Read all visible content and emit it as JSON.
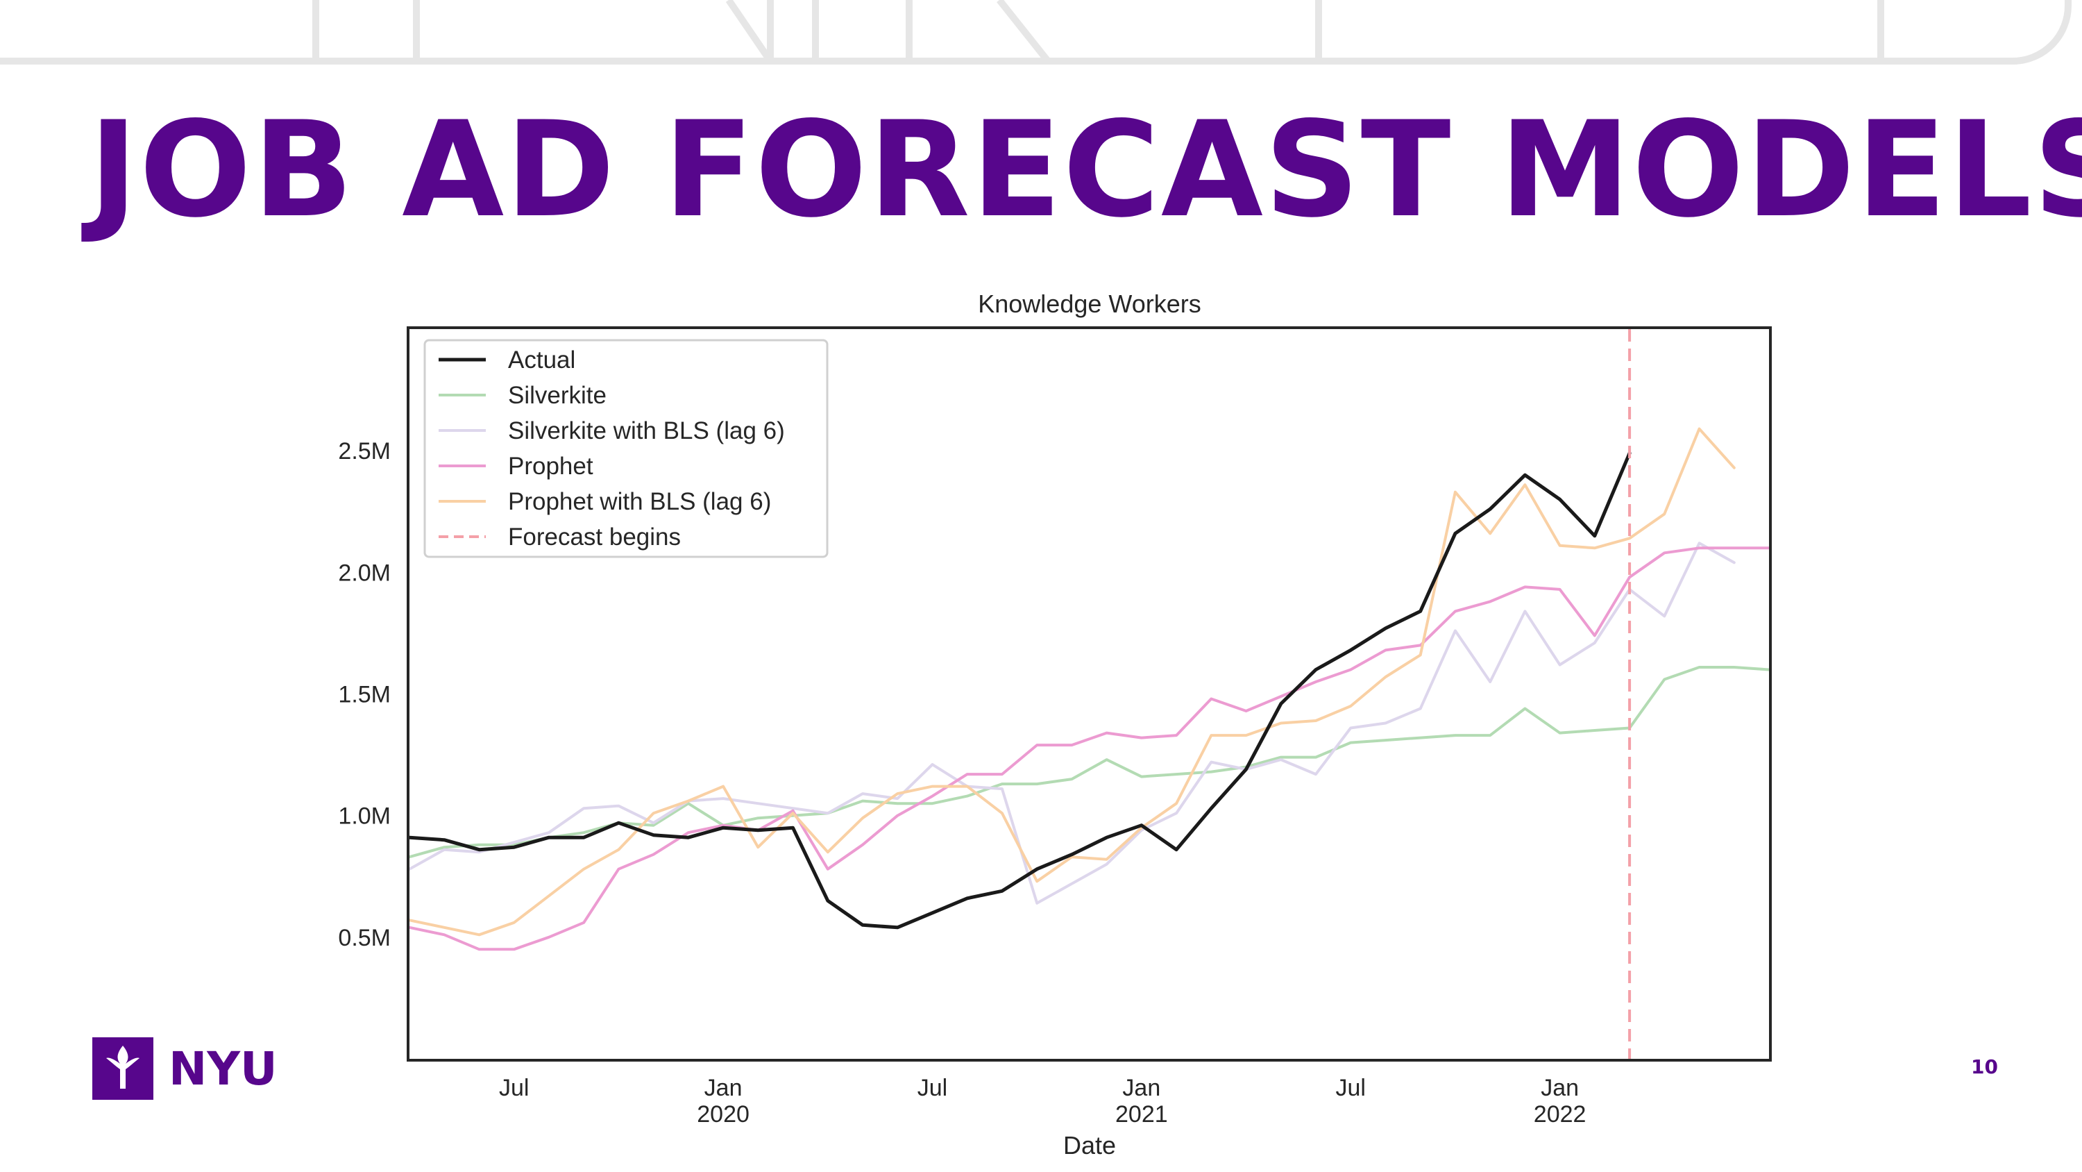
{
  "slide": {
    "title": "JOB AD FORECAST MODELS",
    "page_number": "10",
    "logo_text": "NYU",
    "accent_color": "#57068c"
  },
  "chart_data": {
    "type": "line",
    "title": "Knowledge Workers",
    "xlabel": "Date",
    "ylabel": "",
    "x": [
      "2019-04",
      "2019-05",
      "2019-06",
      "2019-07",
      "2019-08",
      "2019-09",
      "2019-10",
      "2019-11",
      "2019-12",
      "2020-01",
      "2020-02",
      "2020-03",
      "2020-04",
      "2020-05",
      "2020-06",
      "2020-07",
      "2020-08",
      "2020-09",
      "2020-10",
      "2020-11",
      "2020-12",
      "2021-01",
      "2021-02",
      "2021-03",
      "2021-04",
      "2021-05",
      "2021-06",
      "2021-07",
      "2021-08",
      "2021-09",
      "2021-10",
      "2021-11",
      "2021-12",
      "2022-01",
      "2022-02",
      "2022-03",
      "2022-04",
      "2022-05",
      "2022-06",
      "2022-07"
    ],
    "xlim": [
      "2019-04",
      "2022-07"
    ],
    "ylim": [
      0,
      3000000
    ],
    "yticks": [
      500000,
      1000000,
      1500000,
      2000000,
      2500000
    ],
    "ytick_labels": [
      "0.5M",
      "1.0M",
      "1.5M",
      "2.0M",
      "2.5M"
    ],
    "xticks": [
      {
        "x": "2019-07",
        "label": "Jul",
        "sub": ""
      },
      {
        "x": "2020-01",
        "label": "Jan",
        "sub": "2020"
      },
      {
        "x": "2020-07",
        "label": "Jul",
        "sub": ""
      },
      {
        "x": "2021-01",
        "label": "Jan",
        "sub": "2021"
      },
      {
        "x": "2021-07",
        "label": "Jul",
        "sub": ""
      },
      {
        "x": "2022-01",
        "label": "Jan",
        "sub": "2022"
      }
    ],
    "legend_position": "top-left",
    "grid": false,
    "forecast_begins": {
      "x": "2022-03",
      "label": "Forecast begins",
      "color": "#f4a0a8"
    },
    "series": [
      {
        "name": "Actual",
        "color": "#1a1a1a",
        "width": 5,
        "values": [
          910000,
          900000,
          860000,
          870000,
          910000,
          910000,
          970000,
          920000,
          910000,
          950000,
          940000,
          950000,
          650000,
          550000,
          540000,
          600000,
          660000,
          690000,
          780000,
          840000,
          910000,
          960000,
          860000,
          1030000,
          1190000,
          1460000,
          1600000,
          1680000,
          1770000,
          1840000,
          2160000,
          2260000,
          2400000,
          2300000,
          2150000,
          2490000,
          null,
          null,
          null,
          null
        ]
      },
      {
        "name": "Silverkite",
        "color": "#b3dbb3",
        "width": 4,
        "values": [
          830000,
          870000,
          880000,
          880000,
          910000,
          930000,
          970000,
          960000,
          1050000,
          960000,
          990000,
          1000000,
          1010000,
          1060000,
          1050000,
          1050000,
          1080000,
          1130000,
          1130000,
          1150000,
          1230000,
          1160000,
          1170000,
          1180000,
          1200000,
          1240000,
          1240000,
          1300000,
          1310000,
          1320000,
          1330000,
          1330000,
          1440000,
          1340000,
          1350000,
          1360000,
          1560000,
          1610000,
          1610000,
          1600000
        ]
      },
      {
        "name": "Silverkite with BLS (lag 6)",
        "color": "#ddd6ec",
        "width": 4,
        "values": [
          780000,
          860000,
          850000,
          890000,
          930000,
          1030000,
          1040000,
          970000,
          1060000,
          1070000,
          1050000,
          1030000,
          1010000,
          1090000,
          1070000,
          1210000,
          1120000,
          1110000,
          640000,
          720000,
          800000,
          940000,
          1010000,
          1220000,
          1190000,
          1230000,
          1170000,
          1360000,
          1380000,
          1440000,
          1760000,
          1550000,
          1840000,
          1620000,
          1710000,
          1930000,
          1820000,
          2120000,
          2040000,
          null
        ]
      },
      {
        "name": "Prophet",
        "color": "#ec9bd1",
        "width": 4,
        "values": [
          540000,
          510000,
          450000,
          450000,
          500000,
          560000,
          780000,
          840000,
          930000,
          960000,
          940000,
          1020000,
          780000,
          880000,
          1000000,
          1080000,
          1170000,
          1170000,
          1290000,
          1290000,
          1340000,
          1320000,
          1330000,
          1480000,
          1430000,
          1490000,
          1550000,
          1600000,
          1680000,
          1700000,
          1840000,
          1880000,
          1940000,
          1930000,
          1740000,
          1980000,
          2080000,
          2100000,
          2100000,
          2100000
        ]
      },
      {
        "name": "Prophet with BLS (lag 6)",
        "color": "#f9d0a4",
        "width": 4,
        "values": [
          570000,
          540000,
          510000,
          560000,
          670000,
          780000,
          860000,
          1010000,
          1060000,
          1120000,
          870000,
          1010000,
          850000,
          990000,
          1090000,
          1120000,
          1120000,
          1010000,
          730000,
          830000,
          820000,
          950000,
          1050000,
          1330000,
          1330000,
          1380000,
          1390000,
          1450000,
          1570000,
          1660000,
          2330000,
          2160000,
          2360000,
          2110000,
          2100000,
          2140000,
          2240000,
          2590000,
          2430000,
          null
        ]
      }
    ]
  }
}
